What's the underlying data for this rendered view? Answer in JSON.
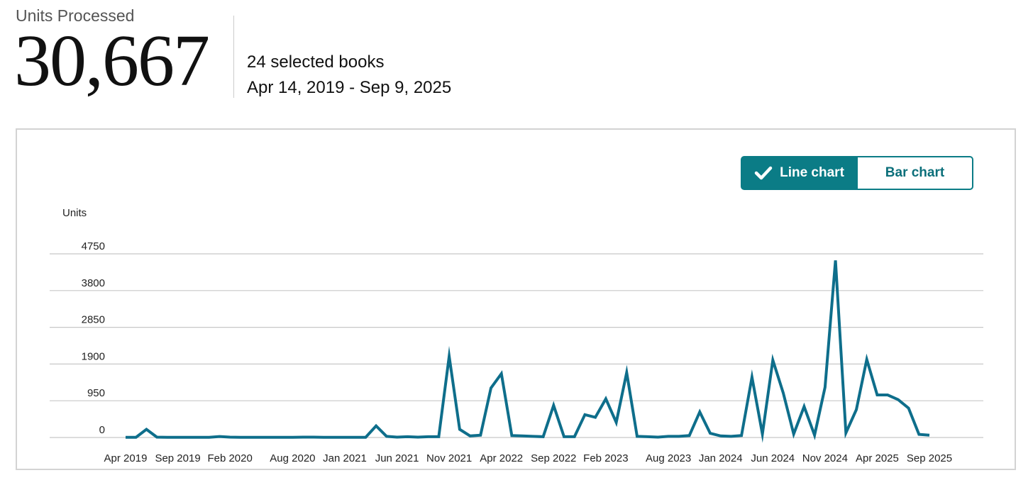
{
  "header": {
    "metric_label": "Units Processed",
    "metric_value": "30,667",
    "books_selected": "24 selected books",
    "date_range": "Apr 14, 2019 - Sep 9, 2025"
  },
  "toggle": {
    "line_label": "Line chart",
    "bar_label": "Bar chart",
    "active": "line"
  },
  "colors": {
    "line": "#0e6e8b",
    "accent": "#0b7c86",
    "grid": "#c8c8c8",
    "border": "#d3d3d3"
  },
  "chart_data": {
    "type": "line",
    "ylabel": "Units",
    "yticks": [
      0,
      950,
      1900,
      2850,
      3800,
      4750
    ],
    "ylim": [
      0,
      4750
    ],
    "x_tick_labels": [
      "Apr 2019",
      "Sep 2019",
      "Feb 2020",
      "Aug 2020",
      "Jan 2021",
      "Jun 2021",
      "Nov 2021",
      "Apr 2022",
      "Sep 2022",
      "Feb 2023",
      "Aug 2023",
      "Jan 2024",
      "Jun 2024",
      "Nov 2024",
      "Apr 2025",
      "Sep 2025"
    ],
    "x_tick_months": [
      "2019-04",
      "2019-09",
      "2020-02",
      "2020-08",
      "2021-01",
      "2021-06",
      "2021-11",
      "2022-04",
      "2022-09",
      "2023-02",
      "2023-08",
      "2024-01",
      "2024-06",
      "2024-11",
      "2025-04",
      "2025-09"
    ],
    "grid": true,
    "series": [
      {
        "x": [
          "2019-04",
          "2019-05",
          "2019-06",
          "2019-07",
          "2019-08",
          "2019-09",
          "2019-10",
          "2019-11",
          "2019-12",
          "2020-01",
          "2020-02",
          "2020-03",
          "2020-04",
          "2020-05",
          "2020-06",
          "2020-07",
          "2020-08",
          "2020-09",
          "2020-10",
          "2020-11",
          "2020-12",
          "2021-01",
          "2021-02",
          "2021-03",
          "2021-04",
          "2021-05",
          "2021-06",
          "2021-07",
          "2021-08",
          "2021-09",
          "2021-10",
          "2021-11",
          "2021-12",
          "2022-01",
          "2022-02",
          "2022-03",
          "2022-04",
          "2022-05",
          "2022-06",
          "2022-07",
          "2022-08",
          "2022-09",
          "2022-10",
          "2022-11",
          "2022-12",
          "2023-01",
          "2023-02",
          "2023-03",
          "2023-04",
          "2023-05",
          "2023-06",
          "2023-07",
          "2023-08",
          "2023-09",
          "2023-10",
          "2023-11",
          "2023-12",
          "2024-01",
          "2024-02",
          "2024-03",
          "2024-04",
          "2024-05",
          "2024-06",
          "2024-07",
          "2024-08",
          "2024-09",
          "2024-10",
          "2024-11",
          "2024-12",
          "2025-01",
          "2025-02",
          "2025-03",
          "2025-04",
          "2025-05",
          "2025-06",
          "2025-07",
          "2025-08",
          "2025-09"
        ],
        "values": [
          5,
          5,
          210,
          10,
          5,
          5,
          5,
          5,
          5,
          25,
          10,
          5,
          5,
          5,
          5,
          5,
          5,
          10,
          10,
          5,
          5,
          5,
          5,
          5,
          300,
          30,
          10,
          20,
          10,
          20,
          20,
          2100,
          210,
          40,
          60,
          1280,
          1650,
          50,
          40,
          30,
          20,
          830,
          20,
          20,
          590,
          520,
          1000,
          390,
          1680,
          30,
          20,
          10,
          30,
          30,
          50,
          660,
          110,
          40,
          30,
          50,
          1560,
          90,
          2000,
          1150,
          90,
          800,
          60,
          1300,
          4580,
          120,
          720,
          2020,
          1100,
          1100,
          980,
          760,
          80,
          60
        ]
      }
    ]
  }
}
